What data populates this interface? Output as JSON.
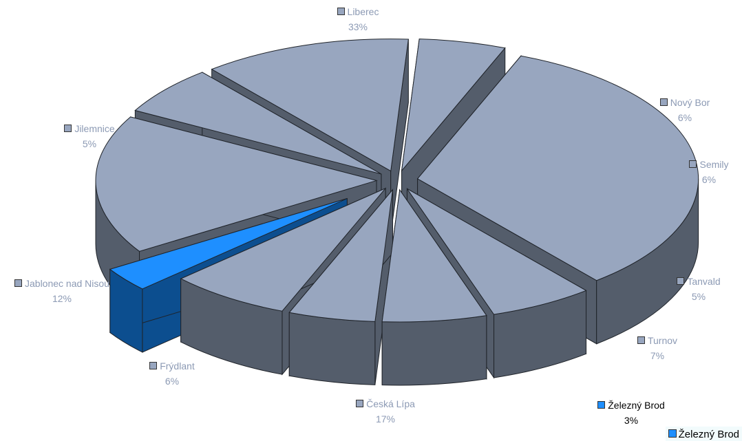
{
  "chart_data": {
    "type": "pie",
    "style": "3d-exploded",
    "title": "",
    "slices": [
      {
        "label": "Liberec",
        "value": 33,
        "value_label": "33%",
        "color": "#98a6bf",
        "highlight": false
      },
      {
        "label": "Nový Bor",
        "value": 6,
        "value_label": "6%",
        "color": "#98a6bf",
        "highlight": false
      },
      {
        "label": "Semily",
        "value": 6,
        "value_label": "6%",
        "color": "#98a6bf",
        "highlight": false
      },
      {
        "label": "Tanvald",
        "value": 5,
        "value_label": "5%",
        "color": "#98a6bf",
        "highlight": false
      },
      {
        "label": "Turnov",
        "value": 7,
        "value_label": "7%",
        "color": "#98a6bf",
        "highlight": false
      },
      {
        "label": "Železný Brod",
        "value": 3,
        "value_label": "3%",
        "color": "#1e8fff",
        "highlight": true
      },
      {
        "label": "Česká Lípa",
        "value": 17,
        "value_label": "17%",
        "color": "#98a6bf",
        "highlight": false
      },
      {
        "label": "Frýdlant",
        "value": 6,
        "value_label": "6%",
        "color": "#98a6bf",
        "highlight": false
      },
      {
        "label": "Jablonec nad Nisou",
        "value": 12,
        "value_label": "12%",
        "color": "#98a6bf",
        "highlight": false
      },
      {
        "label": "Jilemnice",
        "value": 5,
        "value_label": "5%",
        "color": "#98a6bf",
        "highlight": false
      }
    ],
    "colors": {
      "top": "#98a6bf",
      "side": "#545d6b",
      "highlight_top": "#1e8fff",
      "highlight_side": "#0c4e8f",
      "label_text": "#8c9ab4",
      "highlight_label_text": "#000000"
    },
    "legend": {
      "position": "bottom-right",
      "entries": [
        {
          "label": "Železný Brod",
          "color": "#1e8fff"
        }
      ]
    }
  }
}
